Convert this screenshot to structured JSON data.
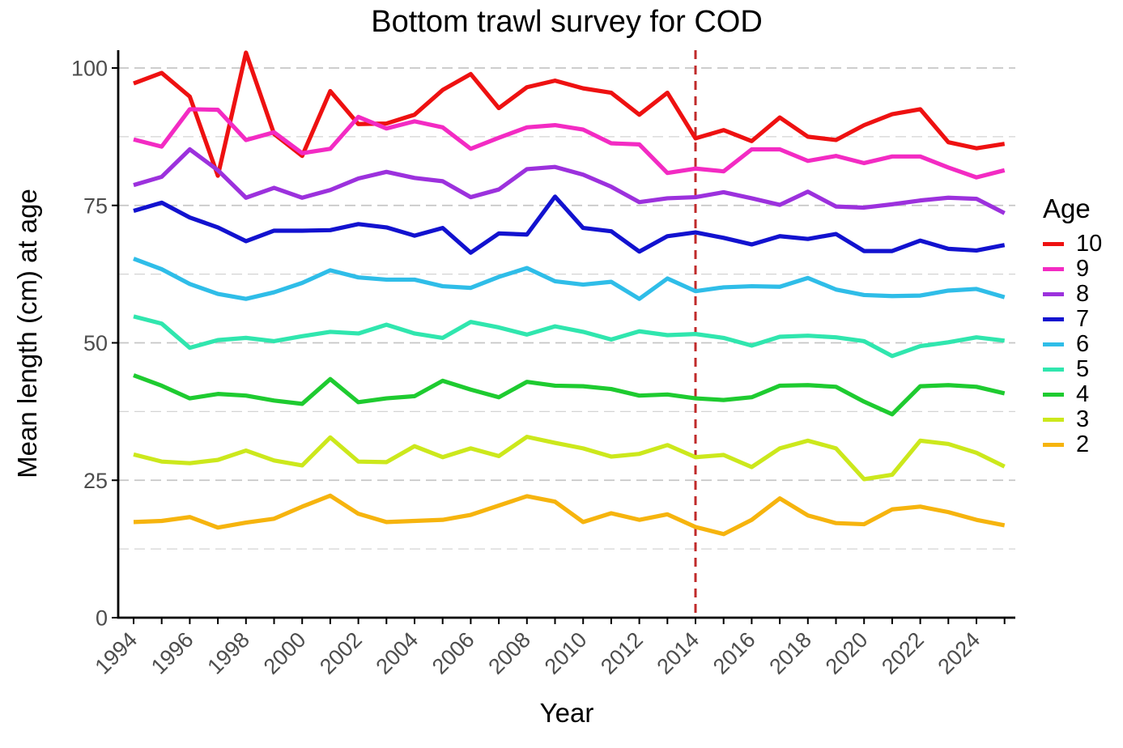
{
  "figure": {
    "title": "Bottom trawl survey for COD",
    "x_axis_label": "Year",
    "y_axis_label": "Mean length (cm) at age",
    "legend_title": "Age"
  },
  "colors": {
    "background": "#ffffff",
    "title_text": "#000000",
    "axis_text": "#4d4d4d",
    "axis_line": "#000000",
    "gridline_major": "#c6c6c6",
    "gridline_minor": "#d4d4d4",
    "reference_line": "#c02b2b"
  },
  "chart_data": {
    "type": "line",
    "title": "Bottom trawl survey for COD",
    "xlabel": "Year",
    "ylabel": "Mean length (cm) at age",
    "legend": {
      "title": "Age",
      "position": "right"
    },
    "grid": "horizontal dashed gridlines, major every 25 and minor every 12.5",
    "ylim": [
      0,
      103
    ],
    "xlim": [
      1993.4,
      2025.5
    ],
    "y_ticks": [
      0,
      25,
      50,
      75,
      100
    ],
    "y_minor_ticks": [
      12.5,
      37.5,
      62.5,
      87.5
    ],
    "x": [
      1994,
      1995,
      1996,
      1997,
      1998,
      1999,
      2000,
      2001,
      2002,
      2003,
      2004,
      2005,
      2006,
      2007,
      2008,
      2009,
      2010,
      2011,
      2012,
      2013,
      2014,
      2015,
      2016,
      2017,
      2018,
      2019,
      2020,
      2021,
      2022,
      2023,
      2024,
      2025
    ],
    "x_tick_labels": [
      "1994",
      "1996",
      "1998",
      "2000",
      "2002",
      "2004",
      "2006",
      "2008",
      "2010",
      "2012",
      "2014",
      "2016",
      "2018",
      "2020",
      "2022",
      "2024"
    ],
    "reference_line": {
      "axis": "x",
      "value": 2014,
      "style": "dashed",
      "color": "#c02b2b"
    },
    "series": [
      {
        "name": "10",
        "color": "#ee1111",
        "values": [
          97.2,
          99.1,
          94.8,
          80.4,
          102.8,
          88.0,
          84.0,
          95.8,
          89.8,
          89.9,
          91.5,
          96.0,
          98.9,
          92.7,
          96.5,
          97.7,
          96.3,
          95.5,
          91.5,
          95.5,
          87.2,
          88.7,
          86.7,
          91.0,
          87.5,
          86.9,
          89.6,
          91.6,
          92.5,
          86.5,
          85.4,
          86.2
        ]
      },
      {
        "name": "9",
        "color": "#f32bc3",
        "values": [
          87.0,
          85.7,
          92.5,
          92.4,
          86.9,
          88.3,
          84.5,
          85.3,
          91.1,
          89.0,
          90.3,
          89.2,
          85.3,
          87.3,
          89.2,
          89.6,
          88.8,
          86.3,
          86.1,
          80.9,
          81.7,
          81.2,
          85.2,
          85.2,
          83.1,
          84.0,
          82.7,
          83.9,
          83.9,
          81.9,
          80.1,
          81.4
        ]
      },
      {
        "name": "8",
        "color": "#9c31dd",
        "values": [
          78.7,
          80.2,
          85.2,
          81.4,
          76.4,
          78.2,
          76.4,
          77.8,
          79.9,
          81.1,
          80.0,
          79.4,
          76.5,
          77.9,
          81.6,
          82.0,
          80.6,
          78.4,
          75.6,
          76.3,
          76.5,
          77.4,
          76.3,
          75.1,
          77.5,
          74.8,
          74.6,
          75.2,
          75.9,
          76.4,
          76.2,
          73.6
        ]
      },
      {
        "name": "7",
        "color": "#1212cf",
        "values": [
          74.0,
          75.5,
          72.8,
          71.0,
          68.5,
          70.4,
          70.4,
          70.5,
          71.6,
          71.0,
          69.5,
          70.9,
          66.4,
          69.9,
          69.7,
          76.6,
          70.9,
          70.3,
          66.6,
          69.4,
          70.1,
          69.1,
          67.9,
          69.4,
          68.9,
          69.8,
          66.7,
          66.7,
          68.6,
          67.1,
          66.8,
          67.8
        ]
      },
      {
        "name": "6",
        "color": "#2fbde8",
        "values": [
          65.3,
          63.4,
          60.7,
          58.9,
          58.0,
          59.2,
          60.9,
          63.2,
          61.9,
          61.5,
          61.5,
          60.3,
          60.0,
          62.0,
          63.6,
          61.2,
          60.6,
          61.1,
          58.0,
          61.7,
          59.4,
          60.1,
          60.3,
          60.2,
          61.8,
          59.7,
          58.7,
          58.5,
          58.6,
          59.5,
          59.8,
          58.3
        ]
      },
      {
        "name": "5",
        "color": "#30e6ae",
        "values": [
          54.8,
          53.5,
          49.1,
          50.5,
          50.9,
          50.3,
          51.2,
          52.0,
          51.7,
          53.3,
          51.7,
          50.9,
          53.8,
          52.8,
          51.5,
          53.0,
          52.0,
          50.6,
          52.1,
          51.4,
          51.6,
          50.9,
          49.5,
          51.1,
          51.3,
          51.0,
          50.3,
          47.6,
          49.4,
          50.1,
          51.0,
          50.4
        ]
      },
      {
        "name": "4",
        "color": "#1ecb30",
        "values": [
          44.1,
          42.2,
          39.9,
          40.7,
          40.4,
          39.5,
          38.9,
          43.4,
          39.2,
          39.9,
          40.3,
          43.1,
          41.5,
          40.1,
          42.9,
          42.2,
          42.1,
          41.6,
          40.4,
          40.6,
          39.9,
          39.6,
          40.1,
          42.2,
          42.3,
          42.0,
          39.3,
          37.0,
          42.1,
          42.3,
          42.0,
          40.8
        ]
      },
      {
        "name": "3",
        "color": "#cce81c",
        "values": [
          29.7,
          28.4,
          28.1,
          28.7,
          30.4,
          28.6,
          27.7,
          32.8,
          28.4,
          28.3,
          31.2,
          29.2,
          30.8,
          29.4,
          32.9,
          31.8,
          30.8,
          29.3,
          29.8,
          31.4,
          29.2,
          29.6,
          27.4,
          30.8,
          32.2,
          30.8,
          25.2,
          26.0,
          32.2,
          31.6,
          30.0,
          27.5
        ]
      },
      {
        "name": "2",
        "color": "#f6b40e",
        "values": [
          17.4,
          17.6,
          18.3,
          16.4,
          17.3,
          18.0,
          20.2,
          22.2,
          18.9,
          17.4,
          17.6,
          17.8,
          18.7,
          20.4,
          22.1,
          21.1,
          17.4,
          19.0,
          17.8,
          18.8,
          16.5,
          15.2,
          17.8,
          21.7,
          18.6,
          17.2,
          17.0,
          19.7,
          20.2,
          19.2,
          17.8,
          16.8
        ]
      }
    ]
  }
}
